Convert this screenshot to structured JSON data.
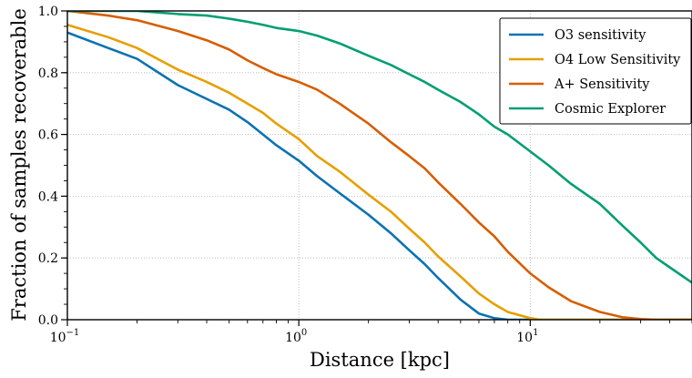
{
  "chart_data": {
    "type": "line",
    "xlabel": "Distance [kpc]",
    "ylabel": "Fraction of samples recoverable",
    "xscale": "log",
    "xlim": [
      0.1,
      50
    ],
    "ylim": [
      0.0,
      1.0
    ],
    "grid": true,
    "legend_position": "top-right",
    "x_ticks": [
      {
        "value": 0.1,
        "base": "10",
        "exp": "−1"
      },
      {
        "value": 1,
        "base": "10",
        "exp": "0"
      },
      {
        "value": 10,
        "base": "10",
        "exp": "1"
      }
    ],
    "y_ticks": [
      "0.0",
      "0.2",
      "0.4",
      "0.6",
      "0.8",
      "1.0"
    ],
    "series": [
      {
        "name": "O3 sensitivity",
        "color": "#0a72b2",
        "points": [
          [
            0.1,
            0.93
          ],
          [
            0.15,
            0.88
          ],
          [
            0.2,
            0.845
          ],
          [
            0.3,
            0.76
          ],
          [
            0.4,
            0.715
          ],
          [
            0.5,
            0.68
          ],
          [
            0.6,
            0.64
          ],
          [
            0.7,
            0.6
          ],
          [
            0.8,
            0.565
          ],
          [
            1.0,
            0.515
          ],
          [
            1.2,
            0.465
          ],
          [
            1.5,
            0.41
          ],
          [
            2.0,
            0.34
          ],
          [
            2.5,
            0.28
          ],
          [
            3.0,
            0.225
          ],
          [
            3.5,
            0.18
          ],
          [
            4.0,
            0.135
          ],
          [
            5.0,
            0.065
          ],
          [
            6.0,
            0.02
          ],
          [
            7.0,
            0.005
          ],
          [
            8.0,
            0.0
          ],
          [
            50,
            0.0
          ]
        ]
      },
      {
        "name": "O4 Low Sensitivity",
        "color": "#e69f00",
        "points": [
          [
            0.1,
            0.955
          ],
          [
            0.15,
            0.915
          ],
          [
            0.2,
            0.88
          ],
          [
            0.3,
            0.81
          ],
          [
            0.4,
            0.77
          ],
          [
            0.5,
            0.735
          ],
          [
            0.6,
            0.7
          ],
          [
            0.7,
            0.67
          ],
          [
            0.8,
            0.635
          ],
          [
            1.0,
            0.585
          ],
          [
            1.2,
            0.53
          ],
          [
            1.5,
            0.48
          ],
          [
            2.0,
            0.405
          ],
          [
            2.5,
            0.35
          ],
          [
            3.0,
            0.295
          ],
          [
            3.5,
            0.25
          ],
          [
            4.0,
            0.205
          ],
          [
            5.0,
            0.14
          ],
          [
            6.0,
            0.085
          ],
          [
            7.0,
            0.05
          ],
          [
            8.0,
            0.025
          ],
          [
            10.0,
            0.005
          ],
          [
            11.0,
            0.0
          ],
          [
            50,
            0.0
          ]
        ]
      },
      {
        "name": "A+ Sensitivity",
        "color": "#d55e00",
        "points": [
          [
            0.1,
            1.0
          ],
          [
            0.15,
            0.985
          ],
          [
            0.2,
            0.97
          ],
          [
            0.3,
            0.935
          ],
          [
            0.4,
            0.905
          ],
          [
            0.5,
            0.875
          ],
          [
            0.6,
            0.84
          ],
          [
            0.7,
            0.815
          ],
          [
            0.8,
            0.795
          ],
          [
            1.0,
            0.77
          ],
          [
            1.2,
            0.745
          ],
          [
            1.5,
            0.7
          ],
          [
            2.0,
            0.635
          ],
          [
            2.5,
            0.575
          ],
          [
            3.0,
            0.53
          ],
          [
            3.5,
            0.49
          ],
          [
            4.0,
            0.445
          ],
          [
            5.0,
            0.375
          ],
          [
            6.0,
            0.315
          ],
          [
            7.0,
            0.27
          ],
          [
            8.0,
            0.22
          ],
          [
            10.0,
            0.15
          ],
          [
            12.0,
            0.105
          ],
          [
            15.0,
            0.06
          ],
          [
            20.0,
            0.025
          ],
          [
            25.0,
            0.008
          ],
          [
            30.0,
            0.002
          ],
          [
            35.0,
            0.0
          ],
          [
            50,
            0.0
          ]
        ]
      },
      {
        "name": "Cosmic Explorer",
        "color": "#029e73",
        "points": [
          [
            0.1,
            1.0
          ],
          [
            0.2,
            1.0
          ],
          [
            0.3,
            0.99
          ],
          [
            0.4,
            0.985
          ],
          [
            0.5,
            0.975
          ],
          [
            0.6,
            0.965
          ],
          [
            0.7,
            0.955
          ],
          [
            0.8,
            0.945
          ],
          [
            1.0,
            0.935
          ],
          [
            1.2,
            0.92
          ],
          [
            1.5,
            0.895
          ],
          [
            2.0,
            0.855
          ],
          [
            2.5,
            0.825
          ],
          [
            3.0,
            0.795
          ],
          [
            3.5,
            0.77
          ],
          [
            4.0,
            0.745
          ],
          [
            5.0,
            0.705
          ],
          [
            6.0,
            0.665
          ],
          [
            7.0,
            0.625
          ],
          [
            8.0,
            0.6
          ],
          [
            10.0,
            0.545
          ],
          [
            12.0,
            0.5
          ],
          [
            15.0,
            0.44
          ],
          [
            20.0,
            0.375
          ],
          [
            25.0,
            0.305
          ],
          [
            30.0,
            0.25
          ],
          [
            35.0,
            0.2
          ],
          [
            40.0,
            0.17
          ],
          [
            50.0,
            0.12
          ]
        ]
      }
    ]
  }
}
